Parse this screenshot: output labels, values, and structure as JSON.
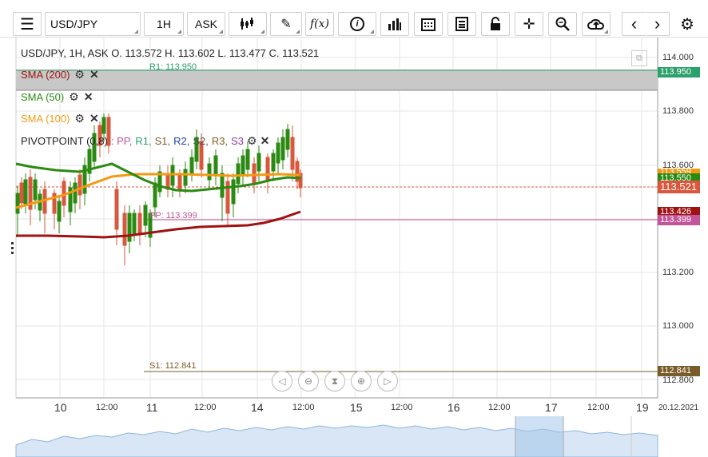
{
  "toolbar": {
    "symbol": "USD/JPY",
    "timeframe": "1H",
    "price_type": "ASK",
    "fx_label": "f(x)"
  },
  "header": {
    "ohlc": "USD/JPY, 1H, ASK    O. 113.572 H. 113.602 L. 113.477 C. 113.521"
  },
  "indicators": {
    "sma200": "SMA (200)",
    "sma50": "SMA (50)",
    "sma100": "SMA (100)",
    "pivot": "PIVOTPOINT (0,8)",
    "pivot_legend": [
      ": PP,",
      "R1,",
      "S1,",
      "R2,",
      "S2,",
      "R3,",
      "S3"
    ]
  },
  "levels": {
    "r1": "R1: 113.950",
    "pp": "PP: 113.399",
    "s1": "S1: 112.841"
  },
  "price_axis": {
    "ticks": [
      "114.000",
      "113.800",
      "113.600",
      "113.400",
      "113.200",
      "113.000",
      "112.800"
    ],
    "badges": {
      "r1": "113.950",
      "sma100": "113.559",
      "sma50": "113.550",
      "last": "113.521",
      "sma200": "113.426",
      "pp": "113.399",
      "s1": "112.841"
    }
  },
  "time_axis": [
    "10",
    "12:00",
    "11",
    "12:00",
    "14",
    "12:00",
    "15",
    "12:00",
    "16",
    "12:00",
    "17",
    "12:00",
    "19",
    "20.12.2021"
  ],
  "colors": {
    "sma200": "#a01212",
    "sma50": "#2a8a12",
    "sma100": "#f29a12",
    "pp": "#c0559a",
    "r1": "#2aa06a",
    "s1": "#7a5c2a",
    "last": "#d9573c"
  }
}
